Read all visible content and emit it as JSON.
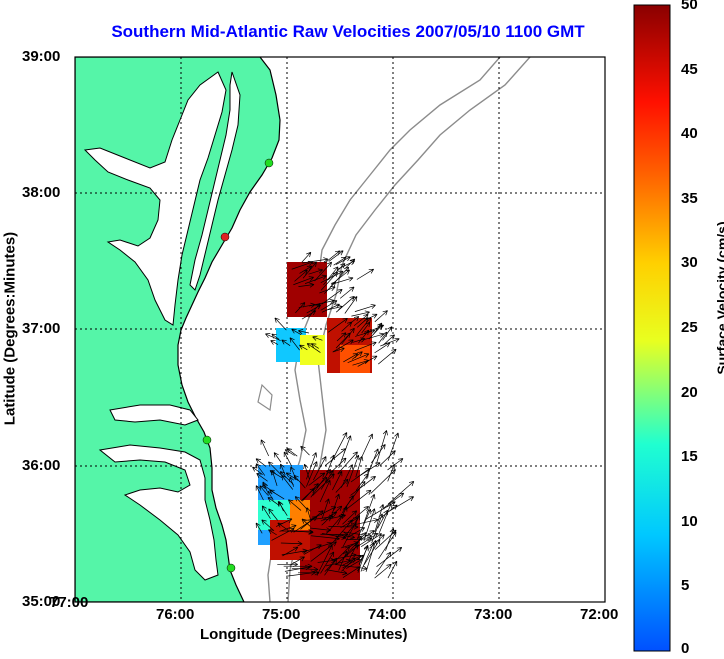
{
  "title": "Southern Mid-Atlantic Raw Velocities 2007/05/10 1100 GMT",
  "xlabel": "Longitude (Degrees:Minutes)",
  "ylabel": "Latitude (Degrees:Minutes)",
  "colorbar_label": "Surface Velocity (cm/s)",
  "x_ticks": [
    "77:00",
    "76:00",
    "75:00",
    "74:00",
    "73:00",
    "72:00"
  ],
  "y_ticks": [
    "39:00",
    "38:00",
    "37:00",
    "36:00",
    "35:00"
  ],
  "colorbar_ticks": [
    "50",
    "45",
    "40",
    "35",
    "30",
    "25",
    "20",
    "15",
    "10",
    "5",
    "0"
  ],
  "colors": {
    "land": "#55f5a8",
    "title": "#0000ff",
    "coast": "#000000",
    "bathy": "#8c8c8c",
    "station": "#22dd22",
    "station_red": "#dd2222"
  },
  "map_extent": {
    "lon": [
      -77,
      -72
    ],
    "lat": [
      35,
      39
    ]
  },
  "colorbar_range": [
    0,
    50
  ]
}
